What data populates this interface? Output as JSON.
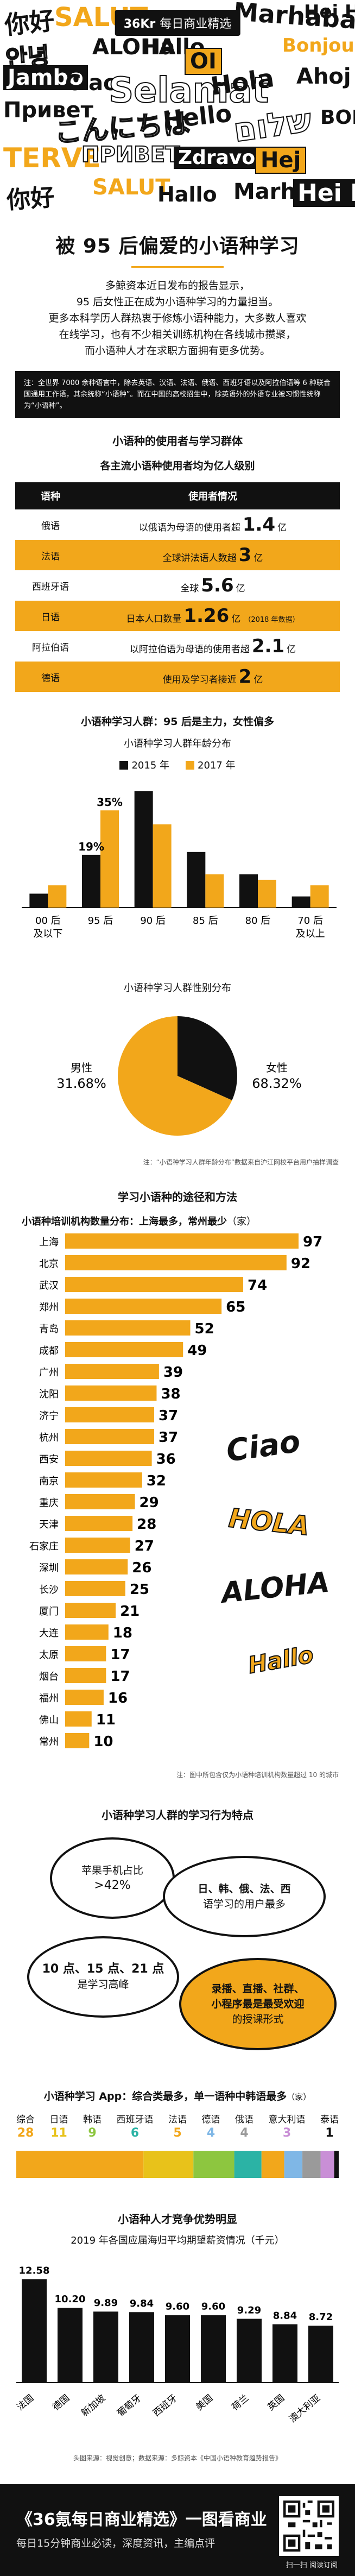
{
  "hero": {
    "brand_kr": "36Kr",
    "brand_text": "每日商业精选",
    "words": [
      "你好",
      "SALUT",
      "Hallo",
      "Marhaba",
      "Hei Hei",
      "안녕",
      "ALOHA",
      "Bonjour",
      "OI",
      "Jambo",
      "Ciao",
      "Selamat",
      "Hola",
      "Ahoj",
      "Привет",
      "こんにちは",
      "Hello",
      "שלום",
      "BOK",
      "TERVE",
      "ПРИВЕТ",
      "Zdravo",
      "Hej"
    ]
  },
  "title": "被 95 后偏爱的小语种学习",
  "intro": [
    "多鲸资本近日发布的报告显示，",
    "95 后女性正在成为小语种学习的力量担当。",
    "更多本科学历人群热衷于修炼小语种能力，大多数人喜欢",
    "在线学习，也有不少相关训练机构在各线城市攒聚，",
    "而小语种人才在求职方面拥有更多优势。"
  ],
  "note": "注：全世界 7000 余种语言中，除去英语、汉语、法语、俄语、西班牙语以及阿拉伯语等 6 种联合国通用工作语，其余统称“小语种”。而在中国的高校招生中，除英语外的外语专业被习惯性统称为“小语种”。",
  "section1": {
    "title": "小语种的使用者与学习群体",
    "subtitle": "各主流小语种使用者均为亿人级别",
    "header_lang": "语种",
    "header_usage": "使用者情况",
    "unit": "亿",
    "rows": [
      {
        "lang": "俄语",
        "pre": "以俄语为母语的使用者超",
        "num": "1.4",
        "note": ""
      },
      {
        "lang": "法语",
        "pre": "全球讲法语人数超",
        "num": "3",
        "note": ""
      },
      {
        "lang": "西班牙语",
        "pre": "全球",
        "num": "5.6",
        "note": ""
      },
      {
        "lang": "日语",
        "pre": "日本人口数量",
        "num": "1.26",
        "note": "（2018 年数据）"
      },
      {
        "lang": "阿拉伯语",
        "pre": "以阿拉伯语为母语的使用者超",
        "num": "2.1",
        "note": ""
      },
      {
        "lang": "德语",
        "pre": "使用及学习者接近",
        "num": "2",
        "note": ""
      }
    ]
  },
  "section2": {
    "subtitle": "小语种学习人群：95 后是主力，女性偏多",
    "footnote": "注：“小语种学习人群年龄分布”数据来自沪江网校平台用户抽样调查"
  },
  "section3": {
    "title": "学习小语种的途径和方法",
    "footnote": "注：图中所包含仅为小语种培训机构数量超过 10 的城市"
  },
  "section4": {
    "title": "小语种学习人群的学习行为特点",
    "b1_a": "苹果手机占比",
    "b1_b": ">42%",
    "b2_a": "日、韩、俄、法、西",
    "b2_b": "语学习的用户最多",
    "b3_a": "10 点、15 点、21 点",
    "b3_b": "是学习高峰",
    "b4_a": "录播、直播、社群、",
    "b4_b": "小程序最是最受欢迎",
    "b4_c": "的授课形式"
  },
  "section5": {
    "title": "小语种学习 App：综合类最多，单一语种中韩语最多",
    "unit_note": "（家）",
    "apps": [
      {
        "name": "综合",
        "value": 28,
        "color": "#f2a71b"
      },
      {
        "name": "日语",
        "value": 11,
        "color": "#e8c21a"
      },
      {
        "name": "韩语",
        "value": 9,
        "color": "#8dc63f"
      },
      {
        "name": "西班牙语",
        "value": 6,
        "color": "#2bb3a5"
      },
      {
        "name": "法语",
        "value": 5,
        "color": "#f2a71b"
      },
      {
        "name": "德语",
        "value": 4,
        "color": "#7fb7e6"
      },
      {
        "name": "俄语",
        "value": 4,
        "color": "#9a9a9a"
      },
      {
        "name": "意大利语",
        "value": 3,
        "color": "#c98fd6"
      },
      {
        "name": "泰语",
        "value": 1,
        "color": "#111111"
      }
    ]
  },
  "section6": {
    "title": "小语种人才竞争优势明显",
    "subtitle": "2019 年各国应届海归平均期望薪资情况（千元）",
    "source": "头图来源：视觉创意；数据来源：多鲸资本《中国小语种教育趋势报告》"
  },
  "footer": {
    "line1": "《36氪每日商业精选》一图看商业",
    "line2": "每日15分钟商业必读，深度资讯，主编点评",
    "qr_caption": "扫一扫 阅读订阅"
  },
  "colors": {
    "accent": "#f2a71b",
    "dark": "#111111",
    "grey": "#b3b3b3"
  },
  "chart_data": [
    {
      "type": "bar",
      "title": "小语种学习人群年龄分布",
      "categories": [
        "00 后及以下",
        "95 后",
        "90 后",
        "85 后",
        "80 后",
        "70 后及以上"
      ],
      "series": [
        {
          "name": "2015 年",
          "values": [
            5,
            19,
            42,
            20,
            12,
            4
          ]
        },
        {
          "name": "2017 年",
          "values": [
            8,
            35,
            30,
            12,
            10,
            8
          ]
        }
      ],
      "data_labels": [
        {
          "category": "95 后",
          "series": "2015 年",
          "label": "19%"
        },
        {
          "category": "95 后",
          "series": "2017 年",
          "label": "35%"
        }
      ],
      "legend": "top-center"
    },
    {
      "type": "pie",
      "title": "小语种学习人群性别分布",
      "labels": [
        "男性",
        "女性"
      ],
      "values": [
        31.68,
        68.32
      ],
      "display": [
        "31.68%",
        "68.32%"
      ]
    },
    {
      "type": "bar",
      "orientation": "horizontal",
      "title": "小语种培训机构数量分布：上海最多，常州最少",
      "unit": "（家）",
      "categories": [
        "上海",
        "北京",
        "武汉",
        "郑州",
        "青岛",
        "成都",
        "广州",
        "沈阳",
        "济宁",
        "杭州",
        "西安",
        "南京",
        "重庆",
        "天津",
        "石家庄",
        "深圳",
        "长沙",
        "厦门",
        "大连",
        "太原",
        "烟台",
        "福州",
        "佛山",
        "常州"
      ],
      "values": [
        97,
        92,
        74,
        65,
        52,
        49,
        39,
        38,
        37,
        37,
        36,
        32,
        29,
        28,
        27,
        26,
        25,
        21,
        18,
        17,
        17,
        16,
        11,
        10
      ]
    },
    {
      "type": "bar",
      "title": "2019 年各国应届海归平均期望薪资情况（千元）",
      "categories": [
        "法国",
        "德国",
        "新加坡",
        "葡萄牙",
        "西班牙",
        "美国",
        "荷兰",
        "英国",
        "澳大利亚"
      ],
      "values": [
        12.58,
        10.2,
        9.89,
        9.84,
        9.6,
        9.6,
        9.29,
        8.84,
        8.72
      ],
      "labels": [
        "12.58",
        "10.20",
        "9.89",
        "9.84",
        "9.60",
        "9.60",
        "9.29",
        "8.84",
        "8.72"
      ],
      "color": "#111111"
    }
  ]
}
